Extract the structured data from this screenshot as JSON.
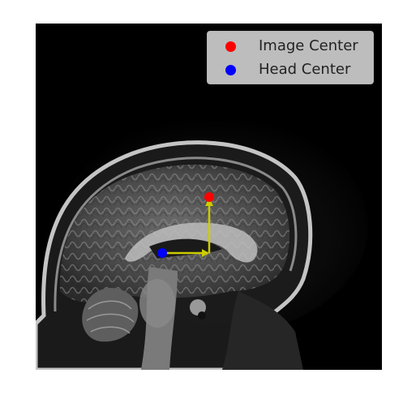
{
  "legend": {
    "items": [
      {
        "label": "Image Center",
        "color": "#ff0000"
      },
      {
        "label": "Head Center",
        "color": "#0000ff"
      }
    ]
  },
  "image": {
    "subject": "mri-sagittal-brain",
    "background": "#000000",
    "arrow_color": "#cccc00",
    "marker_colors": [
      "#ff0000",
      "#0000ff"
    ]
  }
}
